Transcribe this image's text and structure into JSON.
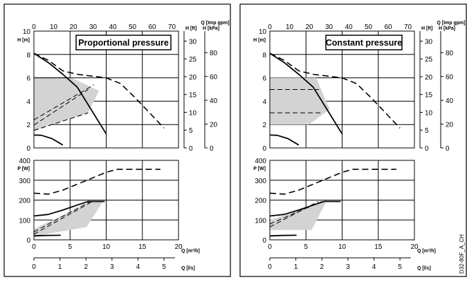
{
  "figure_code": "D32-80F_A_CH",
  "chart_data": [
    {
      "type": "line",
      "title": "Proportional pressure",
      "head": {
        "ylabel": "H [m]",
        "ylim": [
          0,
          10
        ],
        "yticks": [
          0,
          2,
          4,
          6,
          8,
          10
        ],
        "ft_label": "H [ft]",
        "ft_ticks": [
          0,
          5,
          10,
          15,
          20,
          25,
          30
        ],
        "kpa_label": "H [kPa]",
        "kpa_ticks": [
          0,
          20,
          40,
          60,
          80
        ],
        "top_axis_label": "Q [Imp gpm]",
        "top_ticks": [
          0,
          10,
          20,
          30,
          40,
          50,
          60,
          70
        ],
        "curves": [
          {
            "style": "solid",
            "x": [
              0,
              2,
              4,
              6,
              8,
              10
            ],
            "y": [
              8.1,
              7.3,
              6.3,
              5.2,
              3.2,
              1.2
            ]
          },
          {
            "style": "dashed",
            "x": [
              0,
              2,
              4,
              6,
              8,
              10,
              12,
              14,
              16,
              18
            ],
            "y": [
              8.1,
              7.5,
              6.6,
              6.3,
              6.15,
              6.0,
              5.5,
              4.3,
              3.0,
              1.7
            ]
          },
          {
            "style": "solid",
            "x": [
              0,
              1,
              2.5,
              4
            ],
            "y": [
              1.1,
              1.08,
              0.8,
              0.25
            ]
          }
        ],
        "region": {
          "x": [
            0,
            7.5,
            9,
            0
          ],
          "y": [
            1.5,
            3.0,
            4.9,
            6.0
          ]
        },
        "region_apex": [
          5.2,
          6.0
        ],
        "inner_dashed_lines": [
          {
            "x": [
              0,
              7.5
            ],
            "y": [
              1.95,
              5.0
            ]
          },
          {
            "x": [
              0,
              8.3
            ],
            "y": [
              2.4,
              5.4
            ]
          }
        ]
      },
      "power": {
        "ylabel": "P [W]",
        "ylim": [
          0,
          400
        ],
        "yticks": [
          0,
          100,
          200,
          300,
          400
        ],
        "xlabel": "Q [m³/h]",
        "xlim": [
          0,
          20
        ],
        "xticks": [
          0,
          5,
          10,
          15,
          20
        ],
        "second_xlabel": "Q [l/s]",
        "second_xticks": [
          0,
          1,
          2,
          3,
          4,
          5
        ],
        "curves": [
          {
            "style": "solid",
            "x": [
              0,
              2,
              4,
              6,
              7.5,
              9.8
            ],
            "y": [
              120,
              128,
              150,
              175,
              193,
              193
            ]
          },
          {
            "style": "dashed",
            "x": [
              0,
              2,
              4,
              6,
              8,
              10,
              11.5,
              14,
              17.5
            ],
            "y": [
              235,
              230,
              250,
              280,
              310,
              340,
              355,
              355,
              355
            ]
          },
          {
            "style": "solid",
            "x": [
              0,
              1.5,
              3.7
            ],
            "y": [
              20,
              22,
              23
            ]
          }
        ],
        "region": {
          "x": [
            0,
            7.3,
            9.5,
            0
          ],
          "y": [
            18,
            65,
            190,
            55
          ]
        },
        "region_apex": [
          7.9,
          193
        ],
        "inner_dashed_lines": [
          {
            "x": [
              0,
              8.1
            ],
            "y": [
              28,
              193
            ]
          },
          {
            "x": [
              0,
              7.8
            ],
            "y": [
              40,
              193
            ]
          }
        ]
      }
    },
    {
      "type": "line",
      "title": "Constant pressure",
      "head": {
        "ylabel": "H [m]",
        "ylim": [
          0,
          10
        ],
        "yticks": [
          0,
          2,
          4,
          6,
          8,
          10
        ],
        "ft_label": "H [ft]",
        "ft_ticks": [
          0,
          5,
          10,
          15,
          20,
          25,
          30
        ],
        "kpa_label": "H [kPa]",
        "kpa_ticks": [
          0,
          20,
          40,
          60,
          80
        ],
        "top_axis_label": "Q [Imp gpm]",
        "top_ticks": [
          0,
          10,
          20,
          30,
          40,
          50,
          60,
          70
        ],
        "curves": [
          {
            "style": "solid",
            "x": [
              0,
              2,
              4,
              6,
              8,
              10
            ],
            "y": [
              8.1,
              7.3,
              6.3,
              5.2,
              3.2,
              1.2
            ]
          },
          {
            "style": "dashed",
            "x": [
              0,
              2,
              4,
              6,
              8,
              10,
              12,
              14,
              16,
              18
            ],
            "y": [
              8.1,
              7.5,
              6.6,
              6.3,
              6.15,
              6.0,
              5.5,
              4.3,
              3.0,
              1.7
            ]
          },
          {
            "style": "solid",
            "x": [
              0,
              1,
              2.5,
              4
            ],
            "y": [
              1.1,
              1.08,
              0.8,
              0.25
            ]
          }
        ],
        "region": {
          "x": [
            0,
            5.4,
            6.4,
            8.3,
            0
          ],
          "y": [
            2.0,
            2.0,
            6.0,
            3.3,
            6.0
          ]
        },
        "inner_dashed_lines": [
          {
            "x": [
              0,
              7.2
            ],
            "y": [
              3.0,
              3.0
            ]
          },
          {
            "x": [
              0,
              6.8
            ],
            "y": [
              5.0,
              5.0
            ]
          }
        ]
      },
      "power": {
        "ylabel": "P [W]",
        "ylim": [
          0,
          400
        ],
        "yticks": [
          0,
          100,
          200,
          300,
          400
        ],
        "xlabel": "Q [m³/h]",
        "xlim": [
          0,
          20
        ],
        "xticks": [
          0,
          5,
          10,
          15,
          20
        ],
        "second_xlabel": "Q [l/s]",
        "second_xticks": [
          0,
          1,
          2,
          3,
          4,
          5
        ],
        "curves": [
          {
            "style": "solid",
            "x": [
              0,
              2,
              4,
              6,
              7.5,
              9.8
            ],
            "y": [
              120,
              128,
              150,
              175,
              193,
              193
            ]
          },
          {
            "style": "dashed",
            "x": [
              0,
              2,
              4,
              6,
              8,
              10,
              11.5,
              14,
              17.5
            ],
            "y": [
              235,
              230,
              250,
              280,
              310,
              340,
              355,
              355,
              355
            ]
          },
          {
            "style": "solid",
            "x": [
              0,
              1.5,
              3.7
            ],
            "y": [
              20,
              22,
              23
            ]
          }
        ],
        "region": {
          "x": [
            0,
            5.8,
            7.8,
            0
          ],
          "y": [
            50,
            50,
            193,
            100
          ]
        },
        "inner_dashed_lines": [
          {
            "x": [
              0,
              6.7
            ],
            "y": [
              65,
              193
            ]
          },
          {
            "x": [
              0,
              7.2
            ],
            "y": [
              80,
              193
            ]
          }
        ]
      }
    }
  ]
}
